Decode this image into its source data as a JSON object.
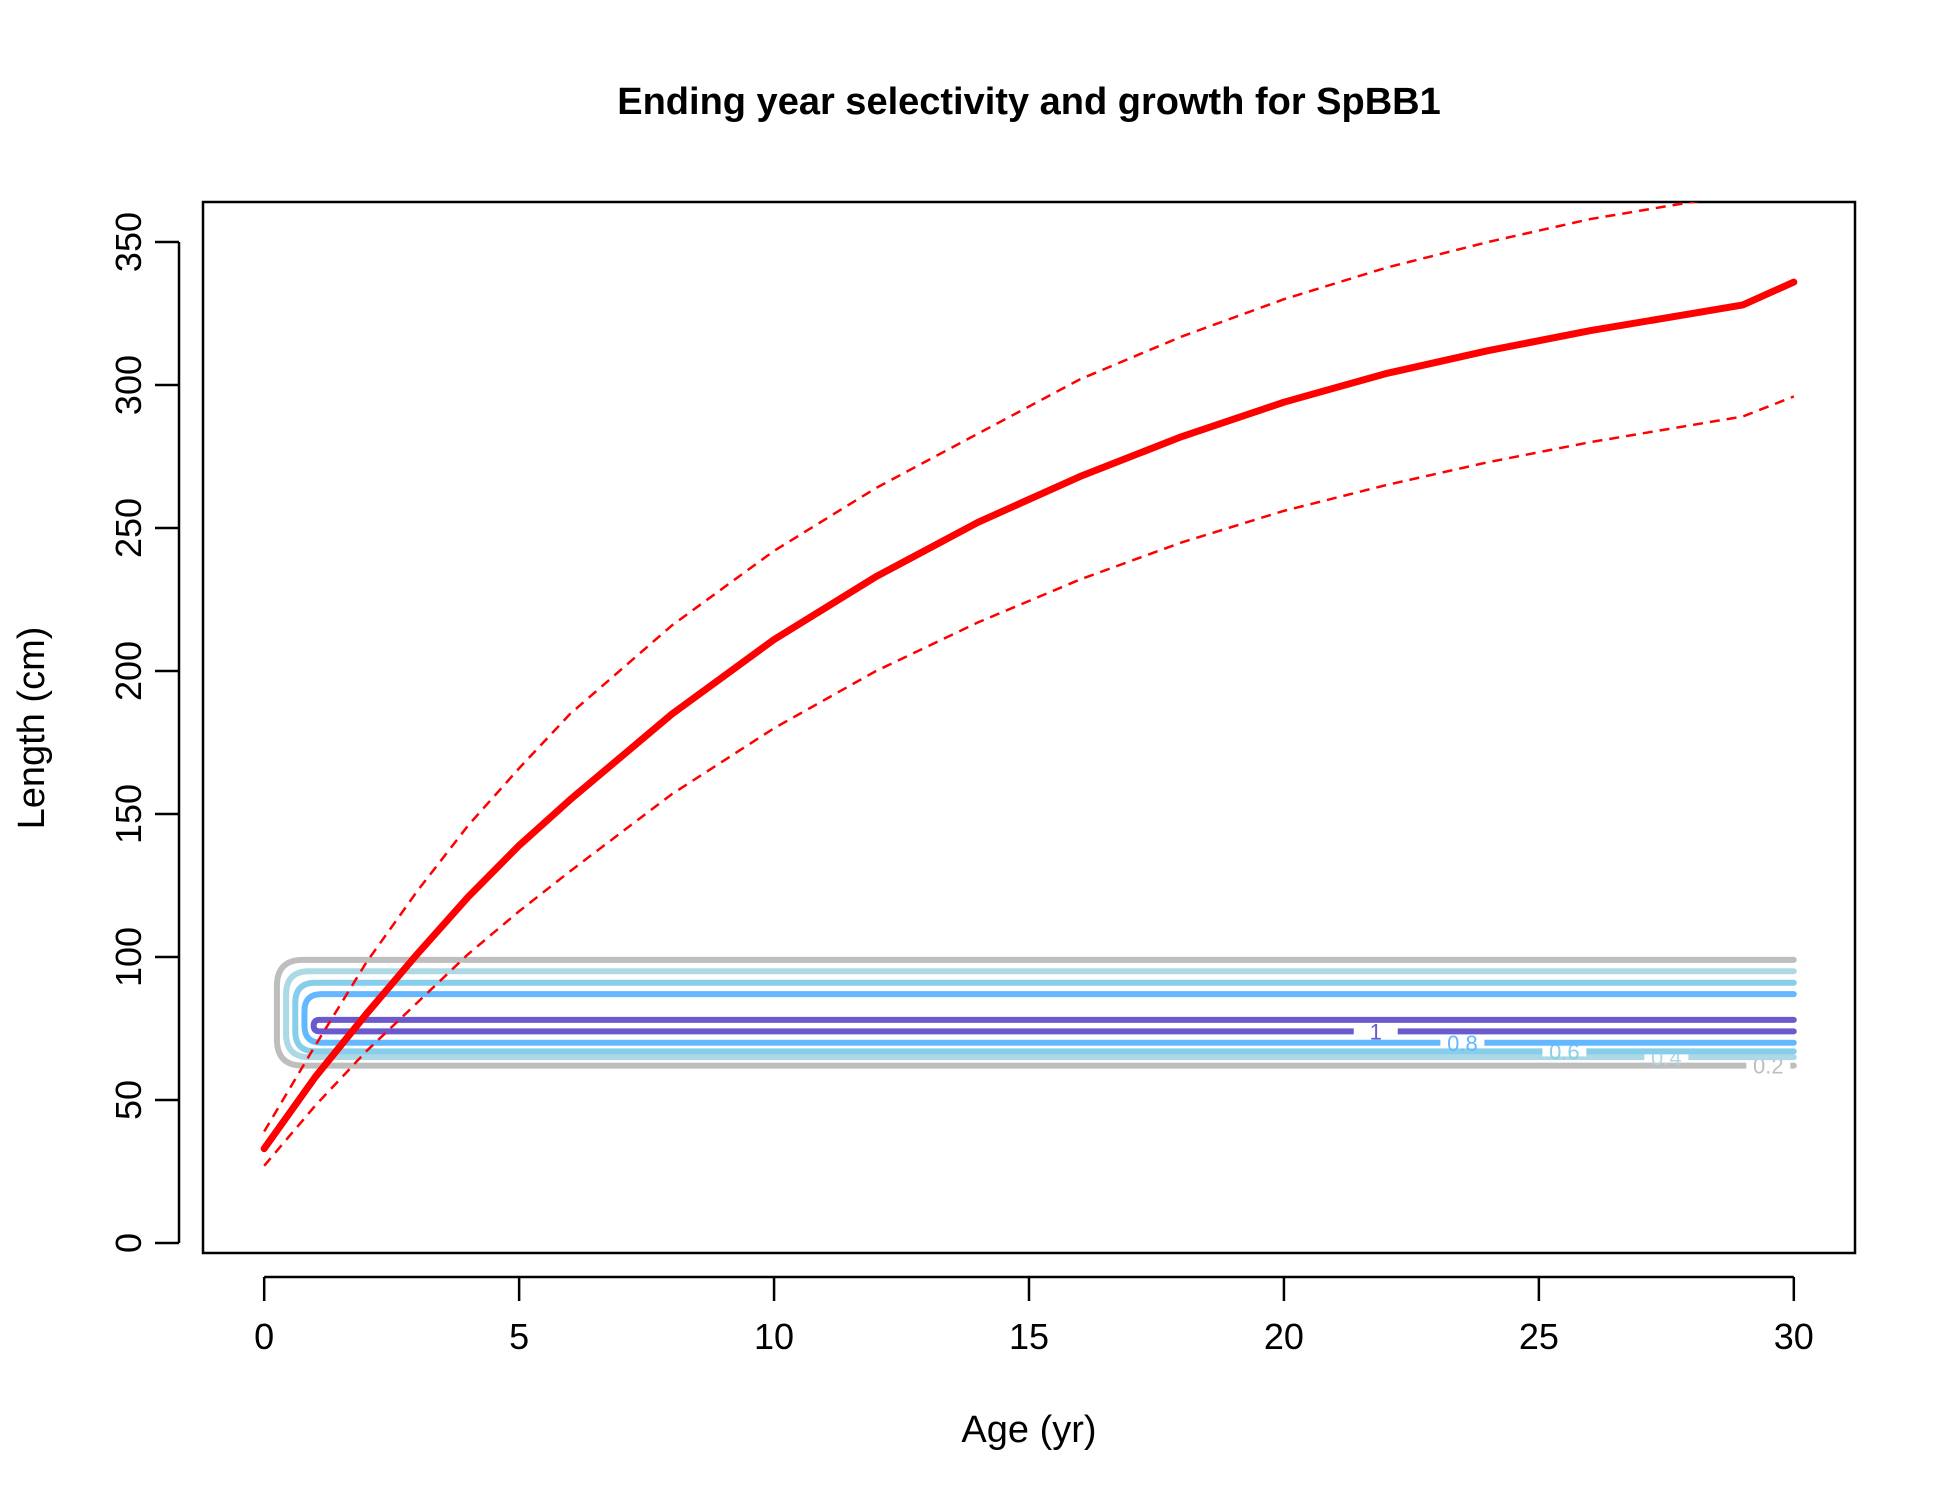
{
  "chart_data": {
    "type": "line",
    "title": "Ending year selectivity and growth for SpBB1",
    "xlabel": "Age (yr)",
    "ylabel": "Length (cm)",
    "xlim": [
      -1.2,
      31.2
    ],
    "ylim": [
      -3.5,
      364
    ],
    "xticks": [
      0,
      5,
      10,
      15,
      20,
      25,
      30
    ],
    "yticks": [
      0,
      50,
      100,
      150,
      200,
      250,
      300,
      350
    ],
    "grid": false,
    "colors": {
      "growth": "#ff0000",
      "contour_0_2": "#bebebe",
      "contour_0_4": "#add8e6",
      "contour_0_6": "#87ceeb",
      "contour_0_8": "#63b8ff",
      "contour_1": "#6a5acd"
    },
    "series": [
      {
        "key": "mean_length",
        "style": "solid",
        "x": [
          0,
          1,
          2,
          3,
          4,
          5,
          6,
          8,
          10,
          12,
          14,
          16,
          18,
          20,
          22,
          24,
          26,
          28,
          29,
          30
        ],
        "y": [
          33,
          58,
          80,
          101,
          121,
          139,
          155,
          185,
          211,
          233,
          252,
          268,
          282,
          294,
          304,
          312,
          319,
          325,
          328,
          336
        ]
      },
      {
        "key": "upper_interval",
        "style": "dashed",
        "x": [
          0,
          1,
          2,
          3,
          4,
          5,
          6,
          8,
          10,
          12,
          14,
          16,
          18,
          20,
          22,
          24,
          26,
          28,
          29,
          30
        ],
        "y": [
          39,
          69,
          98,
          123,
          146,
          166,
          185,
          216,
          242,
          264,
          283,
          302,
          317,
          330,
          341,
          350,
          358,
          364,
          367,
          372
        ]
      },
      {
        "key": "lower_interval",
        "style": "dashed",
        "x": [
          0,
          1,
          2,
          3,
          4,
          5,
          6,
          8,
          10,
          12,
          14,
          16,
          18,
          20,
          22,
          24,
          26,
          28,
          29,
          30
        ],
        "y": [
          27,
          48,
          67,
          84,
          101,
          116,
          130,
          157,
          180,
          200,
          217,
          232,
          245,
          256,
          265,
          273,
          280,
          286,
          289,
          296
        ]
      }
    ],
    "contours": [
      {
        "label": "0.2",
        "color": "#bebebe",
        "y_low": 62,
        "y_high": 99,
        "label_x": 29.5
      },
      {
        "label": "0.4",
        "color": "#add8e6",
        "y_low": 65,
        "y_high": 95,
        "label_x": 27.5
      },
      {
        "label": "0.6",
        "color": "#87ceeb",
        "y_low": 67,
        "y_high": 91,
        "label_x": 25.5
      },
      {
        "label": "0.8",
        "color": "#63b8ff",
        "y_low": 70,
        "y_high": 87,
        "label_x": 23.5
      },
      {
        "label": "1",
        "color": "#6a5acd",
        "y_low": 74,
        "y_high": 78,
        "label_x": 21.8
      }
    ]
  }
}
